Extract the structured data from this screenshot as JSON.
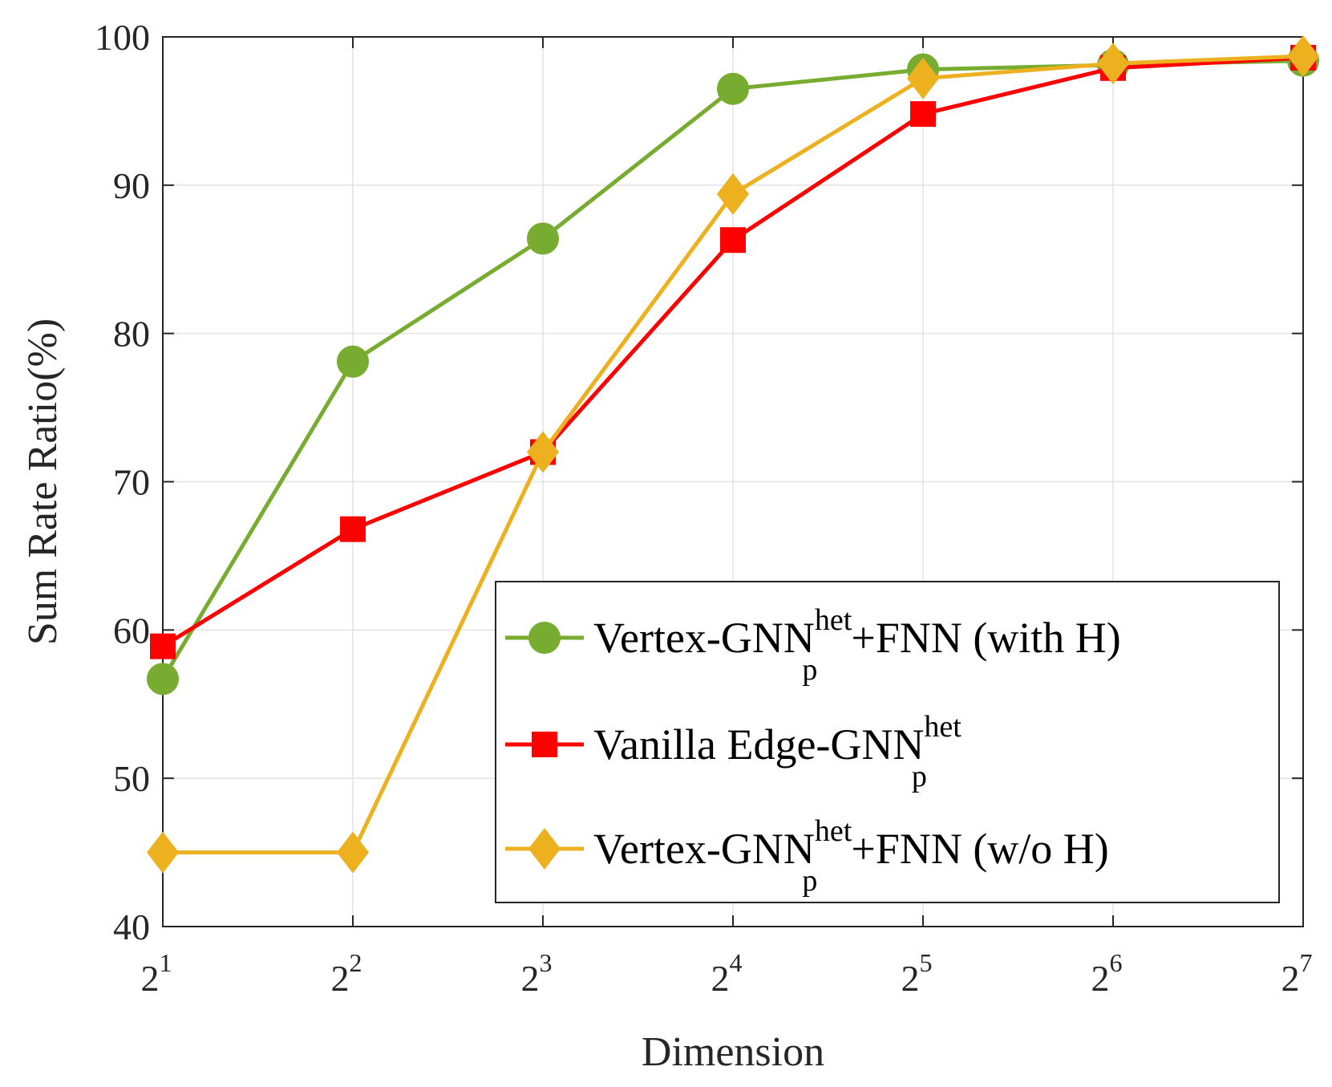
{
  "chart_data": {
    "type": "line",
    "title": "",
    "xlabel": "Dimension",
    "ylabel": "Sum Rate Ratio(%)",
    "x_scale": "log2",
    "x_ticks": [
      {
        "base": "2",
        "exp": "1",
        "value": 1
      },
      {
        "base": "2",
        "exp": "2",
        "value": 2
      },
      {
        "base": "2",
        "exp": "3",
        "value": 3
      },
      {
        "base": "2",
        "exp": "4",
        "value": 4
      },
      {
        "base": "2",
        "exp": "5",
        "value": 5
      },
      {
        "base": "2",
        "exp": "6",
        "value": 6
      },
      {
        "base": "2",
        "exp": "7",
        "value": 7
      }
    ],
    "y_ticks": [
      "40",
      "50",
      "60",
      "70",
      "80",
      "90",
      "100"
    ],
    "xlim": [
      1,
      7
    ],
    "ylim": [
      40,
      100
    ],
    "grid": true,
    "legend_position": "bottom-right",
    "series": [
      {
        "name": "Vertex-GNN",
        "name_sup": "het",
        "name_sub": "p",
        "name_suffix": "+FNN (with H)",
        "color": "#77AC30",
        "marker": "circle",
        "x": [
          1,
          2,
          3,
          4,
          5,
          6,
          7
        ],
        "values": [
          56.7,
          78.1,
          86.4,
          96.5,
          97.8,
          98.1,
          98.4
        ]
      },
      {
        "name": "Vanilla Edge-GNN",
        "name_sup": "het",
        "name_sub": "p",
        "name_suffix": "",
        "color": "#FF0000",
        "marker": "square",
        "x": [
          1,
          2,
          3,
          4,
          5,
          6,
          7
        ],
        "values": [
          58.9,
          66.8,
          72.0,
          86.3,
          94.8,
          97.9,
          98.6
        ]
      },
      {
        "name": "Vertex-GNN",
        "name_sup": "het",
        "name_sub": "p",
        "name_suffix": "+FNN (w/o H)",
        "color": "#EDB120",
        "marker": "diamond",
        "x": [
          1,
          2,
          3,
          4,
          5,
          6,
          7
        ],
        "values": [
          45.0,
          45.0,
          72.0,
          89.4,
          97.2,
          98.2,
          98.7
        ]
      }
    ]
  }
}
